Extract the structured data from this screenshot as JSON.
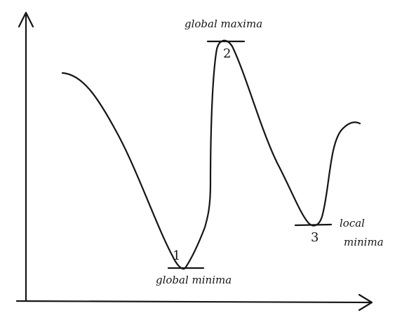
{
  "labels": {
    "global_maxima": "global maxima",
    "global_minima": "global minima",
    "local_minima_line1": "local",
    "local_minima_line2": "minima"
  },
  "markers": {
    "one": "1",
    "two": "2",
    "three": "3"
  },
  "colors": {
    "ink": "#151515",
    "paper": "#ffffff"
  }
}
